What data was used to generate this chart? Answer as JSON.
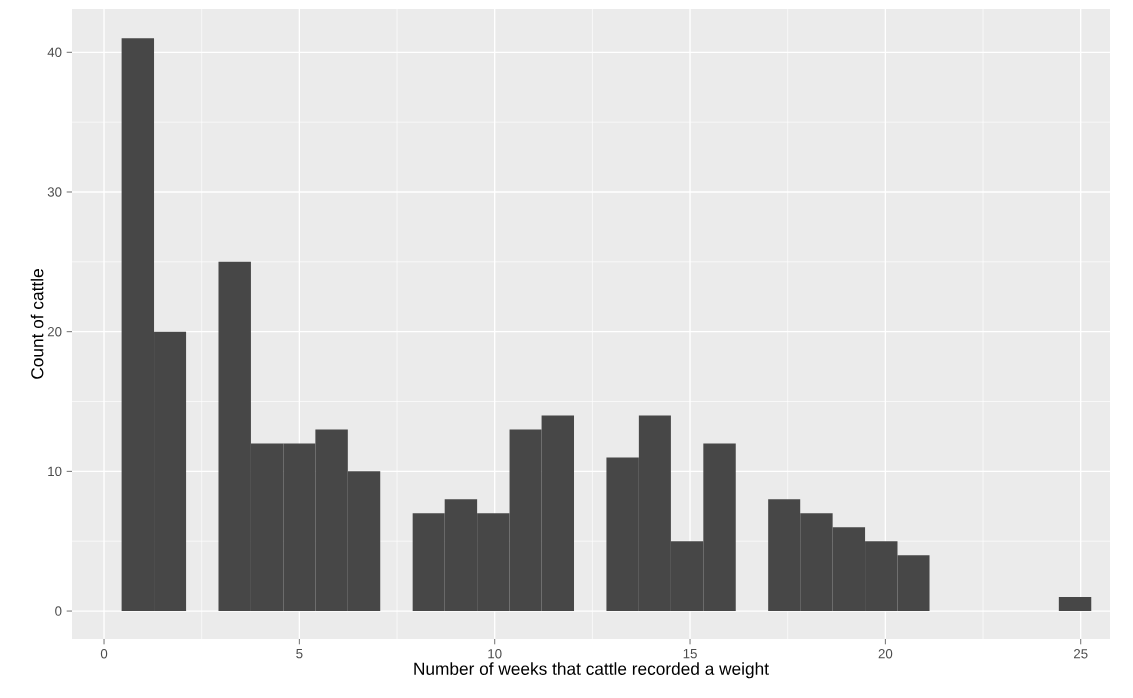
{
  "chart_data": {
    "type": "histogram",
    "xlabel": "Number of weeks that cattle recorded a weight",
    "ylabel": "Count of cattle",
    "bins": [
      0.45,
      1.28,
      2.1,
      2.93,
      3.76,
      4.59,
      5.41,
      6.24,
      7.07,
      7.9,
      8.72,
      9.55,
      10.38,
      11.2,
      12.03,
      12.86,
      13.69,
      14.51,
      15.34,
      16.17,
      17.0,
      17.82,
      18.65,
      19.48,
      20.31,
      21.13,
      21.96,
      22.79,
      23.62,
      24.44,
      25.27
    ],
    "values": [
      41,
      20,
      0,
      25,
      12,
      12,
      13,
      10,
      0,
      7,
      8,
      7,
      13,
      14,
      0,
      11,
      14,
      5,
      12,
      0,
      8,
      7,
      6,
      5,
      4,
      0,
      0,
      0,
      0,
      1
    ],
    "color": "#474747",
    "xlim": [
      -0.82,
      25.75
    ],
    "xticks": [
      0,
      5,
      10,
      15,
      20,
      25
    ],
    "ylim": [
      -2.0,
      43.1
    ],
    "yticks": [
      0,
      10,
      20,
      30,
      40
    ],
    "grid": true
  }
}
